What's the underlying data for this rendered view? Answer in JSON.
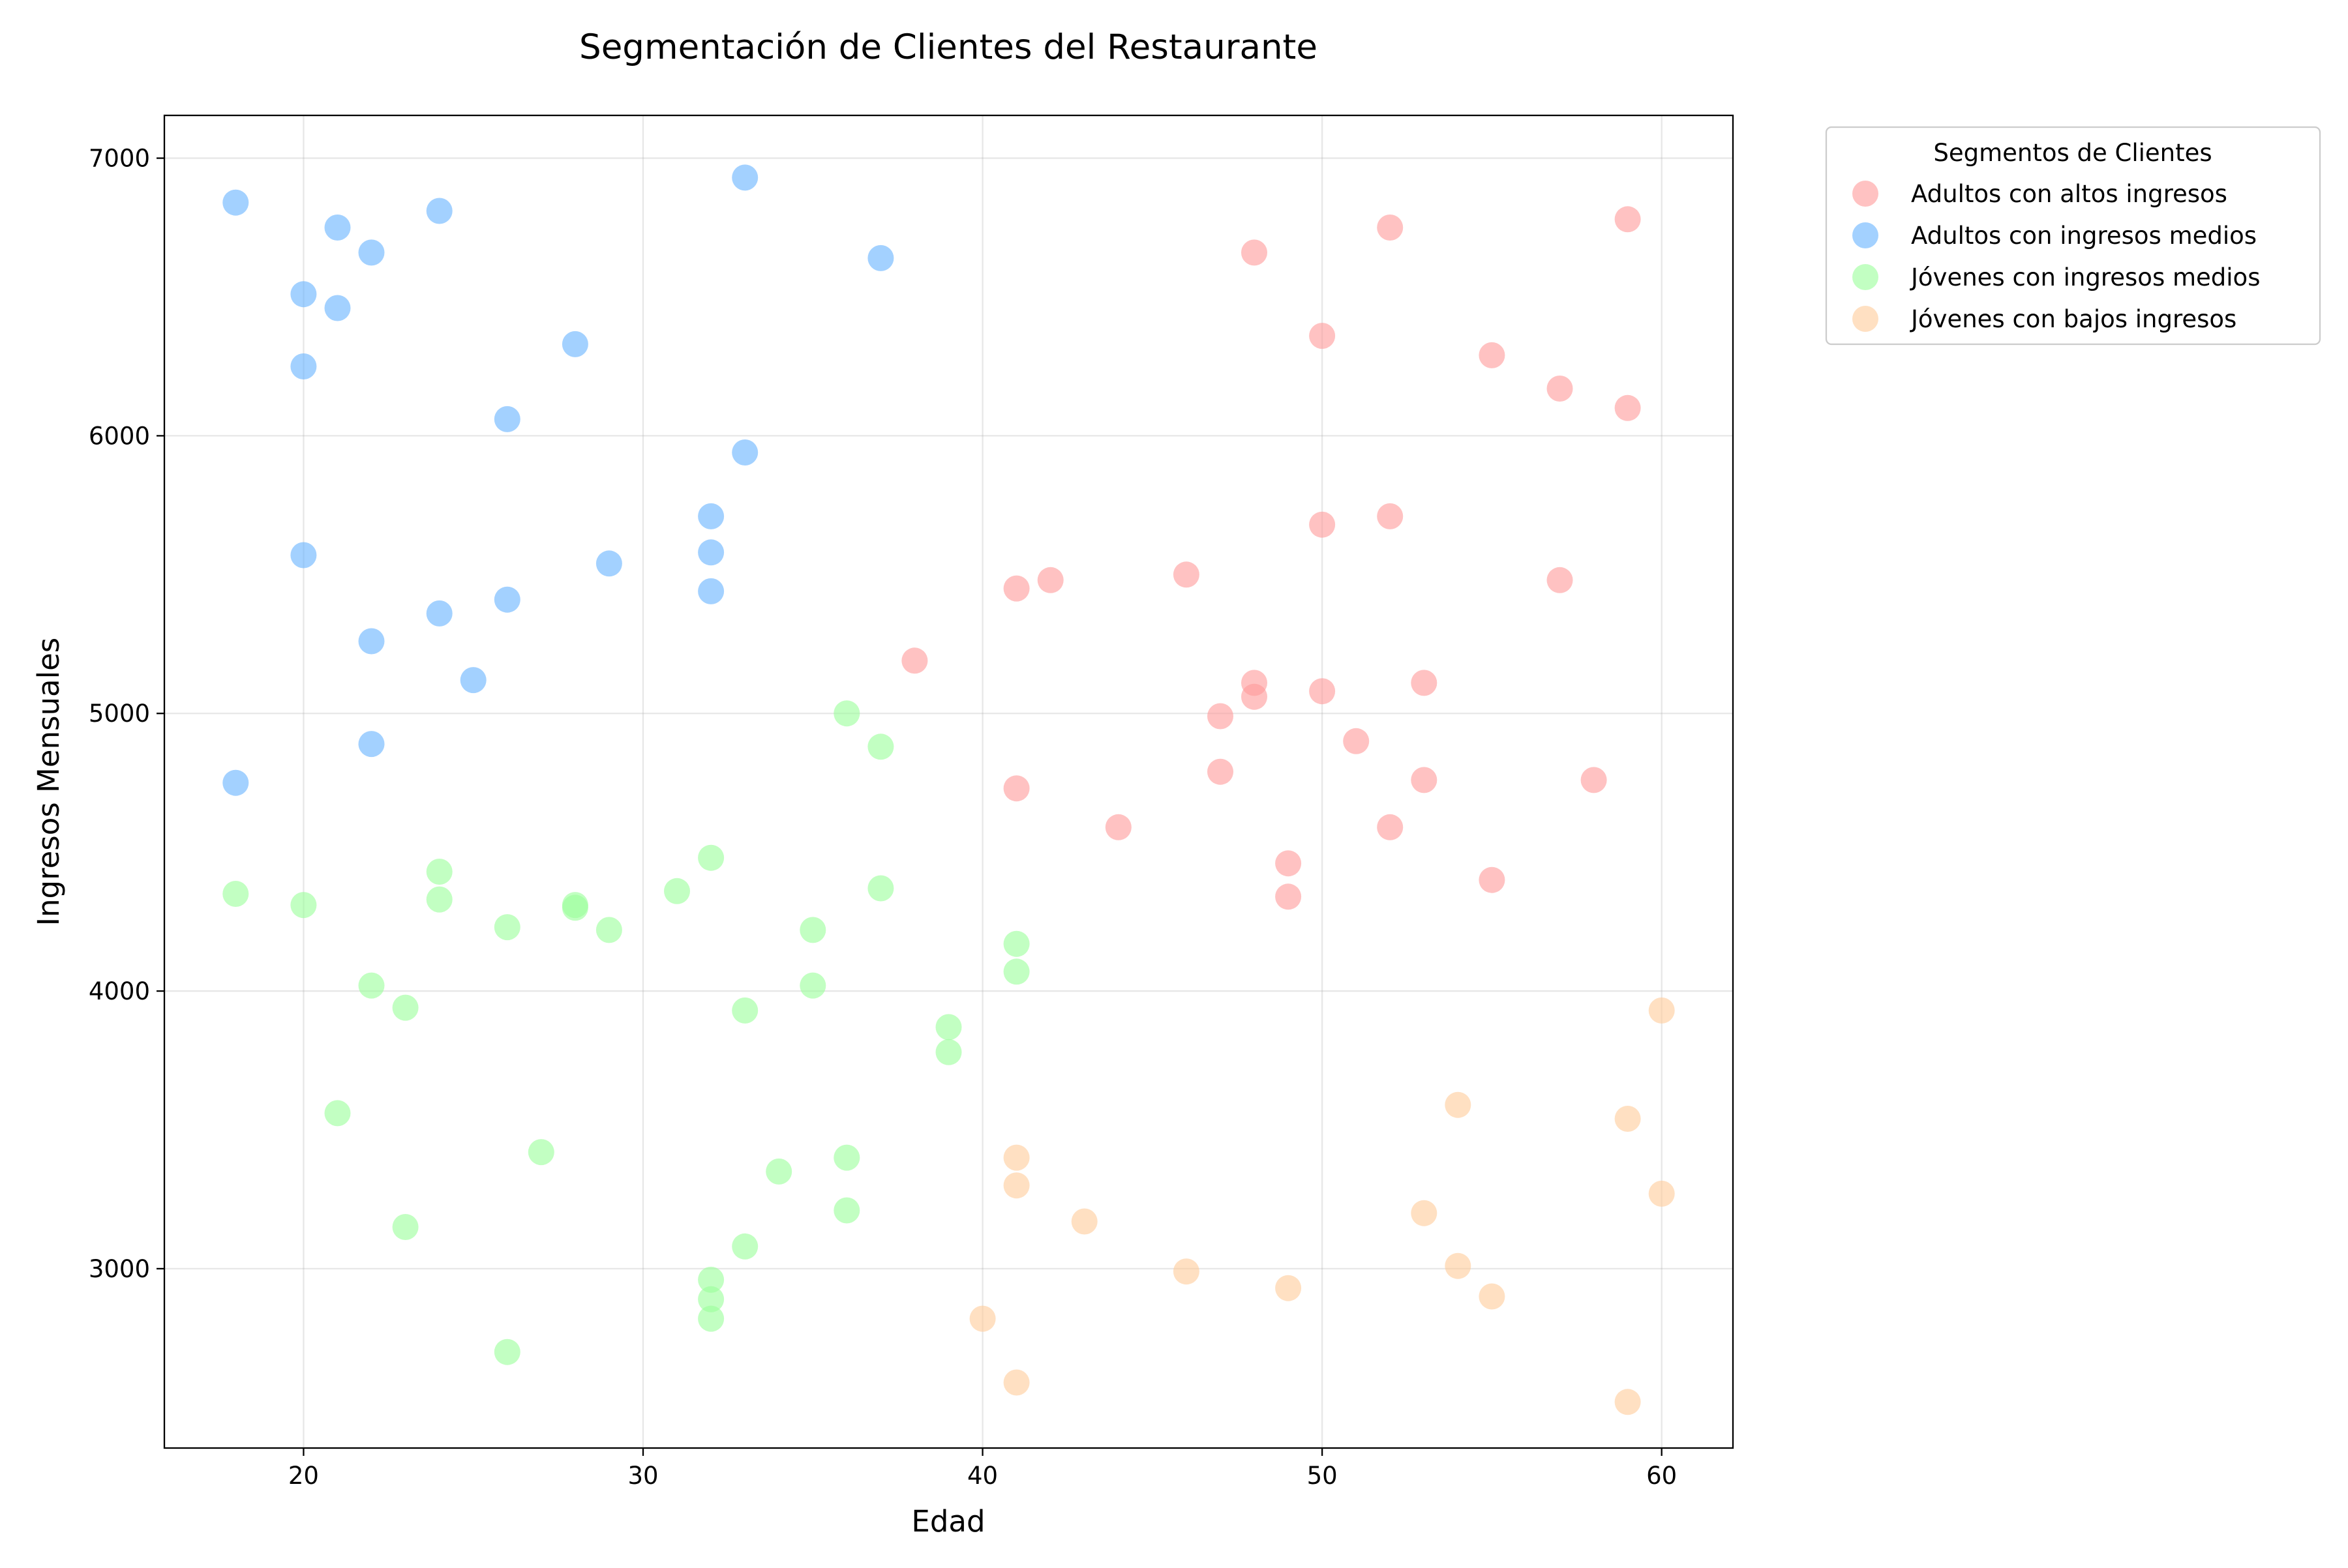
{
  "chart_data": {
    "type": "scatter",
    "title": "Segmentación de Clientes del Restaurante",
    "xlabel": "Edad",
    "ylabel": "Ingresos Mensuales",
    "xlim": [
      15.9,
      62.1
    ],
    "ylim": [
      2354,
      7154
    ],
    "xticks": [
      20,
      30,
      40,
      50,
      60
    ],
    "yticks": [
      3000,
      4000,
      5000,
      6000,
      7000
    ],
    "grid": true,
    "legend": {
      "title": "Segmentos de Clientes",
      "placement": "outside-top-right"
    },
    "series": [
      {
        "name": "Adultos con altos ingresos",
        "color": "#ff9999",
        "points": [
          [
            59,
            6780
          ],
          [
            52,
            6750
          ],
          [
            48,
            6660
          ],
          [
            50,
            6360
          ],
          [
            55,
            6290
          ],
          [
            57,
            6170
          ],
          [
            59,
            6100
          ],
          [
            52,
            5710
          ],
          [
            50,
            5680
          ],
          [
            46,
            5500
          ],
          [
            42,
            5480
          ],
          [
            57,
            5480
          ],
          [
            41,
            5450
          ],
          [
            38,
            5190
          ],
          [
            48,
            5110
          ],
          [
            53,
            5110
          ],
          [
            50,
            5080
          ],
          [
            48,
            5060
          ],
          [
            47,
            4990
          ],
          [
            51,
            4900
          ],
          [
            47,
            4790
          ],
          [
            53,
            4760
          ],
          [
            58,
            4760
          ],
          [
            41,
            4730
          ],
          [
            44,
            4590
          ],
          [
            52,
            4590
          ],
          [
            49,
            4460
          ],
          [
            55,
            4400
          ],
          [
            49,
            4340
          ]
        ]
      },
      {
        "name": "Adultos con ingresos medios",
        "color": "#66b3ff",
        "points": [
          [
            33,
            6930
          ],
          [
            18,
            6840
          ],
          [
            24,
            6810
          ],
          [
            21,
            6750
          ],
          [
            22,
            6660
          ],
          [
            37,
            6640
          ],
          [
            20,
            6510
          ],
          [
            21,
            6460
          ],
          [
            28,
            6330
          ],
          [
            20,
            6250
          ],
          [
            26,
            6060
          ],
          [
            33,
            5940
          ],
          [
            32,
            5710
          ],
          [
            32,
            5580
          ],
          [
            20,
            5570
          ],
          [
            29,
            5540
          ],
          [
            32,
            5440
          ],
          [
            26,
            5410
          ],
          [
            24,
            5360
          ],
          [
            22,
            5260
          ],
          [
            25,
            5120
          ],
          [
            22,
            4890
          ],
          [
            18,
            4750
          ]
        ]
      },
      {
        "name": "Jóvenes con ingresos medios",
        "color": "#99ff99",
        "points": [
          [
            36,
            5000
          ],
          [
            37,
            4880
          ],
          [
            32,
            4480
          ],
          [
            24,
            4430
          ],
          [
            37,
            4370
          ],
          [
            31,
            4360
          ],
          [
            18,
            4350
          ],
          [
            24,
            4330
          ],
          [
            20,
            4310
          ],
          [
            28,
            4310
          ],
          [
            28,
            4300
          ],
          [
            26,
            4230
          ],
          [
            29,
            4220
          ],
          [
            35,
            4220
          ],
          [
            41,
            4170
          ],
          [
            41,
            4070
          ],
          [
            22,
            4020
          ],
          [
            35,
            4020
          ],
          [
            23,
            3940
          ],
          [
            33,
            3930
          ],
          [
            39,
            3870
          ],
          [
            39,
            3780
          ],
          [
            21,
            3560
          ],
          [
            27,
            3420
          ],
          [
            36,
            3400
          ],
          [
            34,
            3350
          ],
          [
            36,
            3210
          ],
          [
            23,
            3150
          ],
          [
            33,
            3080
          ],
          [
            32,
            2960
          ],
          [
            32,
            2890
          ],
          [
            32,
            2820
          ],
          [
            26,
            2700
          ]
        ]
      },
      {
        "name": "Jóvenes con bajos ingresos",
        "color": "#ffcc99",
        "points": [
          [
            60,
            3930
          ],
          [
            54,
            3590
          ],
          [
            59,
            3540
          ],
          [
            41,
            3400
          ],
          [
            41,
            3300
          ],
          [
            60,
            3270
          ],
          [
            53,
            3200
          ],
          [
            43,
            3170
          ],
          [
            54,
            3010
          ],
          [
            46,
            2990
          ],
          [
            49,
            2930
          ],
          [
            55,
            2900
          ],
          [
            40,
            2820
          ],
          [
            41,
            2590
          ],
          [
            59,
            2520
          ]
        ]
      }
    ]
  }
}
